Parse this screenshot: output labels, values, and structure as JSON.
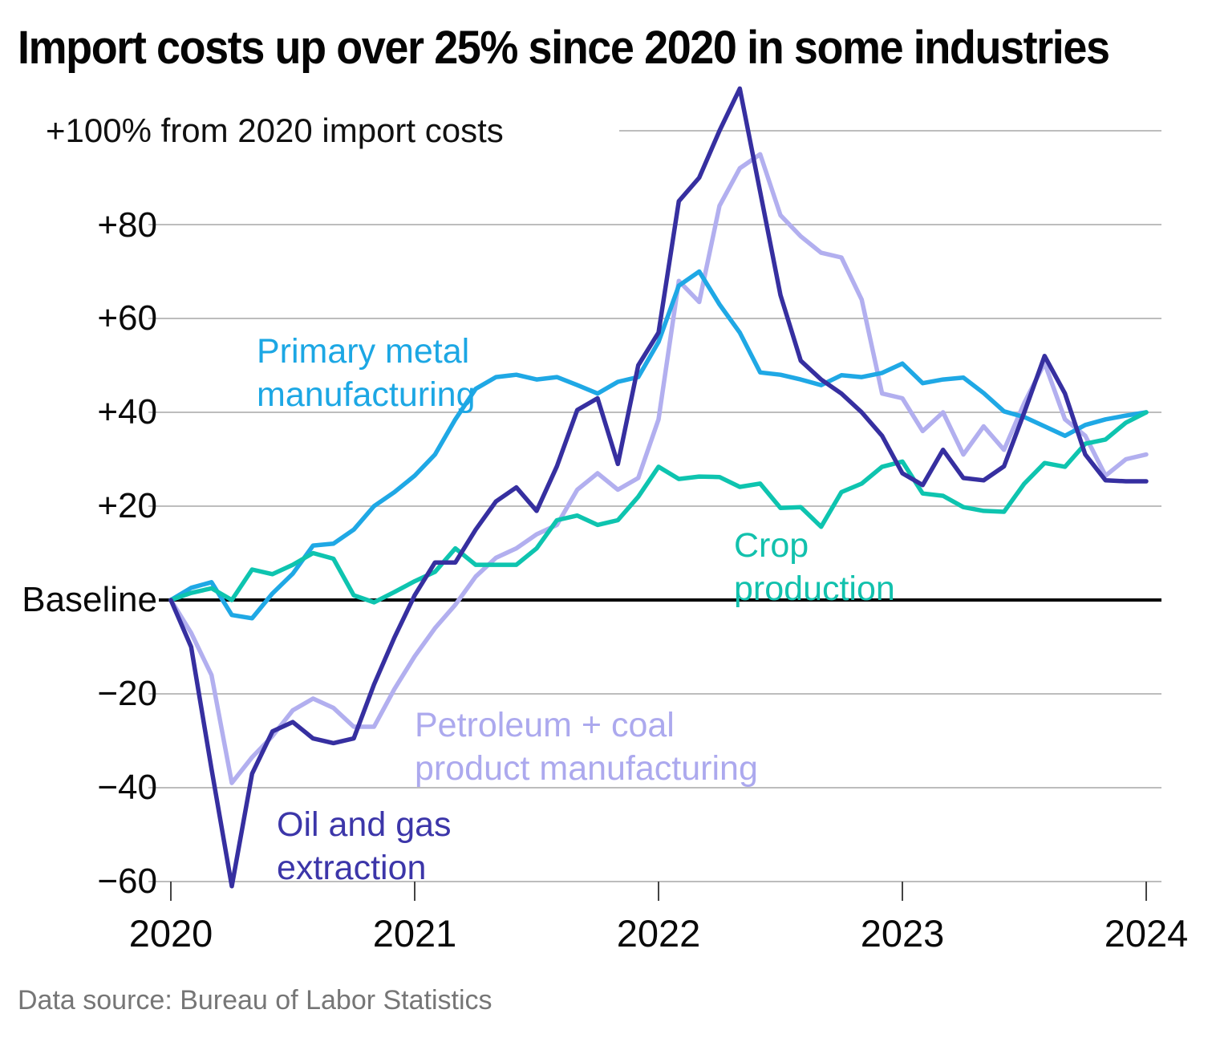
{
  "title": "Import costs up over 25% since 2020 in some industries",
  "footer": "Data source: Bureau of Labor Statistics",
  "y_axis": {
    "unit_label": "+100% from 2020 import costs",
    "tick_labels": [
      "+80",
      "+60",
      "+40",
      "+20",
      "Baseline",
      "−20",
      "−40",
      "−60"
    ]
  },
  "x_axis": {
    "years": [
      "2020",
      "2021",
      "2022",
      "2023",
      "2024"
    ]
  },
  "colors": {
    "gridline": "#bdbdbd",
    "baseline": "#000000",
    "tick": "#444444",
    "title": "#050505",
    "footer": "#767676"
  },
  "chart_data": {
    "type": "line",
    "title": "Import costs up over 25% since 2020 in some industries",
    "subtitle_unit": "+100% from 2020 import costs",
    "baseline_value": 0,
    "ylim": [
      -65,
      112
    ],
    "gridline_values": [
      100,
      80,
      60,
      40,
      20,
      -20,
      -40,
      -60
    ],
    "x_tick_years": [
      "2020",
      "2021",
      "2022",
      "2023",
      "2024"
    ],
    "x_months": [
      "2020-01",
      "2020-02",
      "2020-03",
      "2020-04",
      "2020-05",
      "2020-06",
      "2020-07",
      "2020-08",
      "2020-09",
      "2020-10",
      "2020-11",
      "2020-12",
      "2021-01",
      "2021-02",
      "2021-03",
      "2021-04",
      "2021-05",
      "2021-06",
      "2021-07",
      "2021-08",
      "2021-09",
      "2021-10",
      "2021-11",
      "2021-12",
      "2022-01",
      "2022-02",
      "2022-03",
      "2022-04",
      "2022-05",
      "2022-06",
      "2022-07",
      "2022-08",
      "2022-09",
      "2022-10",
      "2022-11",
      "2022-12",
      "2023-01",
      "2023-02",
      "2023-03",
      "2023-04",
      "2023-05",
      "2023-06",
      "2023-07",
      "2023-08",
      "2023-09",
      "2023-10",
      "2023-11",
      "2023-12",
      "2024-01"
    ],
    "draw_order": [
      2,
      0,
      1,
      3
    ],
    "series": [
      {
        "name": "Primary metal manufacturing",
        "label_lines": [
          "Primary metal",
          "manufacturing"
        ],
        "color": "#1FA8E5",
        "label_color": "#1CA7E4",
        "values": [
          0,
          2.6,
          3.8,
          -3.2,
          -3.9,
          1.4,
          5.6,
          11.6,
          12,
          15,
          20,
          23,
          26.5,
          31,
          38.5,
          45,
          47.5,
          48,
          47,
          47.5,
          45.8,
          44,
          46.5,
          47.5,
          55,
          67,
          70,
          63,
          57,
          48.5,
          48,
          47,
          45.8,
          47.9,
          47.5,
          48.4,
          50.4,
          46.2,
          47,
          47.4,
          44.1,
          40.2,
          39,
          37,
          35,
          37.3,
          38.5,
          39.3,
          40
        ]
      },
      {
        "name": "Crop production",
        "label_lines": [
          "Crop",
          "production"
        ],
        "color": "#0EC4AF",
        "label_color": "#12C1AD",
        "values": [
          0,
          1.5,
          2.5,
          0,
          6.5,
          5.5,
          7.5,
          10,
          8.8,
          1,
          -0.5,
          1.7,
          4,
          6,
          11,
          7.5,
          7.5,
          7.5,
          11,
          17,
          18,
          16,
          17,
          22,
          28.4,
          25.8,
          26.3,
          26.2,
          24.1,
          24.8,
          19.6,
          19.8,
          15.6,
          23,
          24.8,
          28.4,
          29.5,
          22.7,
          22.2,
          19.8,
          19,
          18.8,
          24.8,
          29.2,
          28.4,
          33.3,
          34.2,
          37.8,
          40
        ]
      },
      {
        "name": "Petroleum + coal product manufacturing",
        "label_lines": [
          "Petroleum + coal",
          "product manufacturing"
        ],
        "color": "#B2AFEF",
        "label_color": "#ACA9EE",
        "values": [
          0,
          -7,
          -16,
          -39,
          -33.5,
          -29,
          -23.5,
          -21,
          -23,
          -27,
          -27,
          -19,
          -12,
          -6,
          -1,
          5,
          9,
          11,
          14,
          16,
          23.5,
          27,
          23.5,
          26,
          38.5,
          68,
          63.5,
          84,
          92,
          95,
          82,
          77.5,
          74,
          73,
          64,
          44,
          43,
          36,
          40,
          31,
          37,
          32,
          42,
          50.5,
          38.5,
          35,
          26.5,
          30,
          31
        ]
      },
      {
        "name": "Oil and gas extraction",
        "label_lines": [
          "Oil and gas",
          "extraction"
        ],
        "color": "#362FA0",
        "label_color": "#3C36A9",
        "values": [
          0,
          -10,
          -36,
          -61,
          -37,
          -28,
          -26,
          -29.5,
          -30.5,
          -29.5,
          -18,
          -8,
          1,
          8,
          8,
          15,
          21,
          24,
          19,
          28.5,
          40.5,
          43,
          29,
          50,
          57,
          85,
          90,
          100,
          109,
          87,
          65,
          51,
          47,
          44,
          40,
          35,
          27,
          24.5,
          32,
          26,
          25.5,
          28.5,
          40,
          52,
          44,
          31,
          25.5,
          25.3,
          25.3
        ]
      }
    ]
  }
}
